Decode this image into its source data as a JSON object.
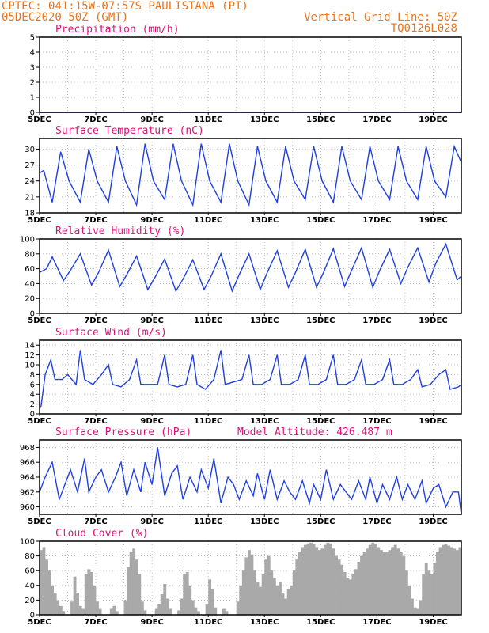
{
  "header": {
    "line1_left": "CPTEC:   041:15W-07:57S   PAULISTANA (PI)",
    "line2_left": "05DEC2020 50Z (GMT)",
    "line1_right": "Vertical Grid Line: 50Z",
    "line2_right": "TQ0126L028"
  },
  "x_axis": {
    "tick_labels": [
      "5DEC",
      "7DEC",
      "9DEC",
      "11DEC",
      "13DEC",
      "15DEC",
      "17DEC",
      "19DEC"
    ],
    "tick_days": [
      5,
      7,
      9,
      11,
      13,
      15,
      17,
      19
    ],
    "range": [
      5,
      20
    ]
  },
  "chart_data": [
    {
      "type": "line",
      "title": "Precipitation (mm/h)",
      "ylim": [
        0,
        5
      ],
      "yticks": [
        0,
        1,
        2,
        3,
        4,
        5
      ],
      "x": [
        5,
        20
      ],
      "values": [
        0,
        0
      ]
    },
    {
      "type": "line",
      "title": "Surface Temperature (nC)",
      "ylim": [
        18,
        32
      ],
      "yticks": [
        18,
        21,
        24,
        27,
        30
      ],
      "x": [
        5.0,
        5.15,
        5.45,
        5.75,
        6.05,
        6.45,
        6.75,
        7.05,
        7.45,
        7.75,
        8.05,
        8.45,
        8.75,
        9.05,
        9.45,
        9.75,
        10.05,
        10.45,
        10.75,
        11.05,
        11.45,
        11.75,
        12.05,
        12.45,
        12.75,
        13.05,
        13.45,
        13.75,
        14.05,
        14.45,
        14.75,
        15.05,
        15.45,
        15.75,
        16.05,
        16.45,
        16.75,
        17.05,
        17.45,
        17.75,
        18.05,
        18.45,
        18.75,
        19.05,
        19.45,
        19.75,
        20.0
      ],
      "values": [
        25.5,
        26,
        20,
        29.5,
        24,
        20,
        30,
        24,
        20,
        30.5,
        24,
        19.5,
        31,
        24,
        20.5,
        31,
        24,
        19.5,
        31,
        24,
        20,
        31,
        24,
        19.5,
        30.5,
        24,
        20,
        30.5,
        24,
        20.5,
        30.5,
        24,
        20,
        30.5,
        24,
        20.5,
        30.5,
        24,
        20.5,
        30.5,
        24,
        20.5,
        30.5,
        24,
        21,
        30.5,
        27.5
      ]
    },
    {
      "type": "line",
      "title": "Relative Humidity (%)",
      "ylim": [
        0,
        100
      ],
      "yticks": [
        0,
        20,
        40,
        60,
        80,
        100
      ],
      "x": [
        5.0,
        5.25,
        5.45,
        5.85,
        6.1,
        6.45,
        6.85,
        7.1,
        7.45,
        7.85,
        8.1,
        8.45,
        8.85,
        9.1,
        9.45,
        9.85,
        10.1,
        10.45,
        10.85,
        11.1,
        11.45,
        11.85,
        12.1,
        12.45,
        12.85,
        13.1,
        13.45,
        13.85,
        14.1,
        14.45,
        14.85,
        15.1,
        15.45,
        15.85,
        16.1,
        16.45,
        16.85,
        17.1,
        17.45,
        17.85,
        18.1,
        18.45,
        18.85,
        19.1,
        19.45,
        19.85,
        20.0
      ],
      "values": [
        55,
        60,
        76,
        44,
        58,
        80,
        38,
        55,
        85,
        36,
        52,
        77,
        32,
        48,
        73,
        30,
        46,
        72,
        32,
        50,
        80,
        30,
        52,
        80,
        32,
        55,
        84,
        35,
        55,
        86,
        35,
        55,
        87,
        36,
        58,
        88,
        35,
        58,
        86,
        40,
        62,
        88,
        42,
        68,
        93,
        45,
        50
      ]
    },
    {
      "type": "line",
      "title": "Surface Wind (m/s)",
      "ylim": [
        0,
        15
      ],
      "yticks": [
        0,
        2,
        4,
        6,
        8,
        10,
        12,
        14
      ],
      "x": [
        5.0,
        5.05,
        5.2,
        5.4,
        5.55,
        5.8,
        6.0,
        6.3,
        6.45,
        6.6,
        6.9,
        7.2,
        7.45,
        7.6,
        7.9,
        8.2,
        8.45,
        8.6,
        8.9,
        9.2,
        9.45,
        9.6,
        9.9,
        10.2,
        10.45,
        10.6,
        10.9,
        11.2,
        11.45,
        11.6,
        11.9,
        12.2,
        12.45,
        12.6,
        12.9,
        13.2,
        13.45,
        13.6,
        13.9,
        14.2,
        14.45,
        14.6,
        14.9,
        15.2,
        15.45,
        15.6,
        15.9,
        16.2,
        16.45,
        16.6,
        16.9,
        17.2,
        17.45,
        17.6,
        17.9,
        18.2,
        18.45,
        18.6,
        18.9,
        19.2,
        19.45,
        19.6,
        19.9,
        20.0
      ],
      "values": [
        1,
        1.5,
        8,
        11,
        7,
        7,
        8,
        6,
        13,
        7,
        6,
        8,
        10,
        6,
        5.5,
        7,
        11,
        6,
        6,
        6,
        12,
        6,
        5.5,
        6,
        12,
        6,
        5,
        7,
        13,
        6,
        6.5,
        7,
        12,
        6,
        6,
        7,
        12,
        6,
        6,
        7,
        12,
        6,
        6,
        7,
        12,
        6,
        6,
        7,
        11,
        6,
        6,
        7,
        11,
        6,
        6,
        7,
        9,
        5.5,
        6,
        8,
        9,
        5,
        5.5,
        6
      ]
    },
    {
      "type": "line",
      "title": "Surface Pressure (hPa)",
      "annotation": "Model Altitude: 426.487 m",
      "ylim": [
        959,
        969
      ],
      "yticks": [
        960,
        962,
        964,
        966,
        968
      ],
      "x": [
        5.0,
        5.2,
        5.45,
        5.7,
        5.9,
        6.1,
        6.35,
        6.6,
        6.75,
        7.0,
        7.2,
        7.45,
        7.7,
        7.9,
        8.1,
        8.35,
        8.6,
        8.75,
        9.0,
        9.2,
        9.45,
        9.7,
        9.9,
        10.1,
        10.35,
        10.6,
        10.75,
        11.0,
        11.2,
        11.45,
        11.7,
        11.9,
        12.1,
        12.35,
        12.6,
        12.75,
        13.0,
        13.2,
        13.45,
        13.7,
        13.9,
        14.1,
        14.35,
        14.6,
        14.75,
        15.0,
        15.2,
        15.45,
        15.7,
        15.9,
        16.1,
        16.35,
        16.6,
        16.75,
        17.0,
        17.2,
        17.45,
        17.7,
        17.9,
        18.1,
        18.35,
        18.6,
        18.75,
        19.0,
        19.2,
        19.45,
        19.7,
        19.9,
        20.0
      ],
      "values": [
        962,
        964,
        966,
        961,
        963,
        965,
        962,
        966.5,
        962,
        964,
        965,
        962,
        964,
        966,
        961.5,
        965,
        962,
        966,
        963,
        968,
        961.5,
        964.5,
        965.5,
        961,
        964,
        962,
        965,
        962.5,
        966.5,
        960.5,
        964,
        963,
        961,
        963.5,
        961.5,
        964.5,
        961,
        965,
        961,
        963.5,
        962,
        961,
        963.5,
        960.5,
        963,
        961,
        965,
        961,
        963,
        962,
        961,
        963.5,
        961,
        964,
        960.5,
        963,
        961,
        964,
        961,
        963,
        961,
        963.5,
        960.5,
        962.5,
        963,
        960,
        962,
        962,
        959
      ]
    },
    {
      "type": "bar",
      "title": "Cloud Cover (%)",
      "ylim": [
        0,
        100
      ],
      "yticks": [
        0,
        20,
        40,
        60,
        80,
        100
      ],
      "x_range": [
        5,
        20
      ],
      "bar_color": "#a9a9a9",
      "values": [
        88,
        92,
        75,
        60,
        40,
        30,
        20,
        12,
        5,
        0,
        0,
        18,
        52,
        30,
        12,
        8,
        55,
        62,
        58,
        40,
        18,
        8,
        0,
        0,
        0,
        8,
        12,
        5,
        0,
        0,
        20,
        65,
        85,
        90,
        75,
        55,
        18,
        6,
        0,
        0,
        0,
        8,
        15,
        28,
        42,
        22,
        8,
        0,
        0,
        6,
        22,
        55,
        58,
        40,
        20,
        10,
        5,
        0,
        0,
        15,
        48,
        35,
        10,
        0,
        0,
        8,
        5,
        0,
        0,
        0,
        18,
        40,
        60,
        78,
        88,
        82,
        60,
        45,
        38,
        55,
        75,
        80,
        60,
        50,
        40,
        45,
        30,
        22,
        35,
        40,
        60,
        75,
        85,
        92,
        95,
        97,
        98,
        96,
        92,
        88,
        90,
        95,
        98,
        97,
        90,
        80,
        75,
        68,
        58,
        50,
        48,
        55,
        62,
        72,
        80,
        85,
        90,
        95,
        98,
        96,
        92,
        88,
        86,
        85,
        88,
        92,
        95,
        90,
        85,
        80,
        60,
        40,
        22,
        10,
        8,
        20,
        55,
        70,
        60,
        55,
        70,
        85,
        92,
        95,
        96,
        94,
        92,
        90,
        88,
        92
      ]
    }
  ]
}
